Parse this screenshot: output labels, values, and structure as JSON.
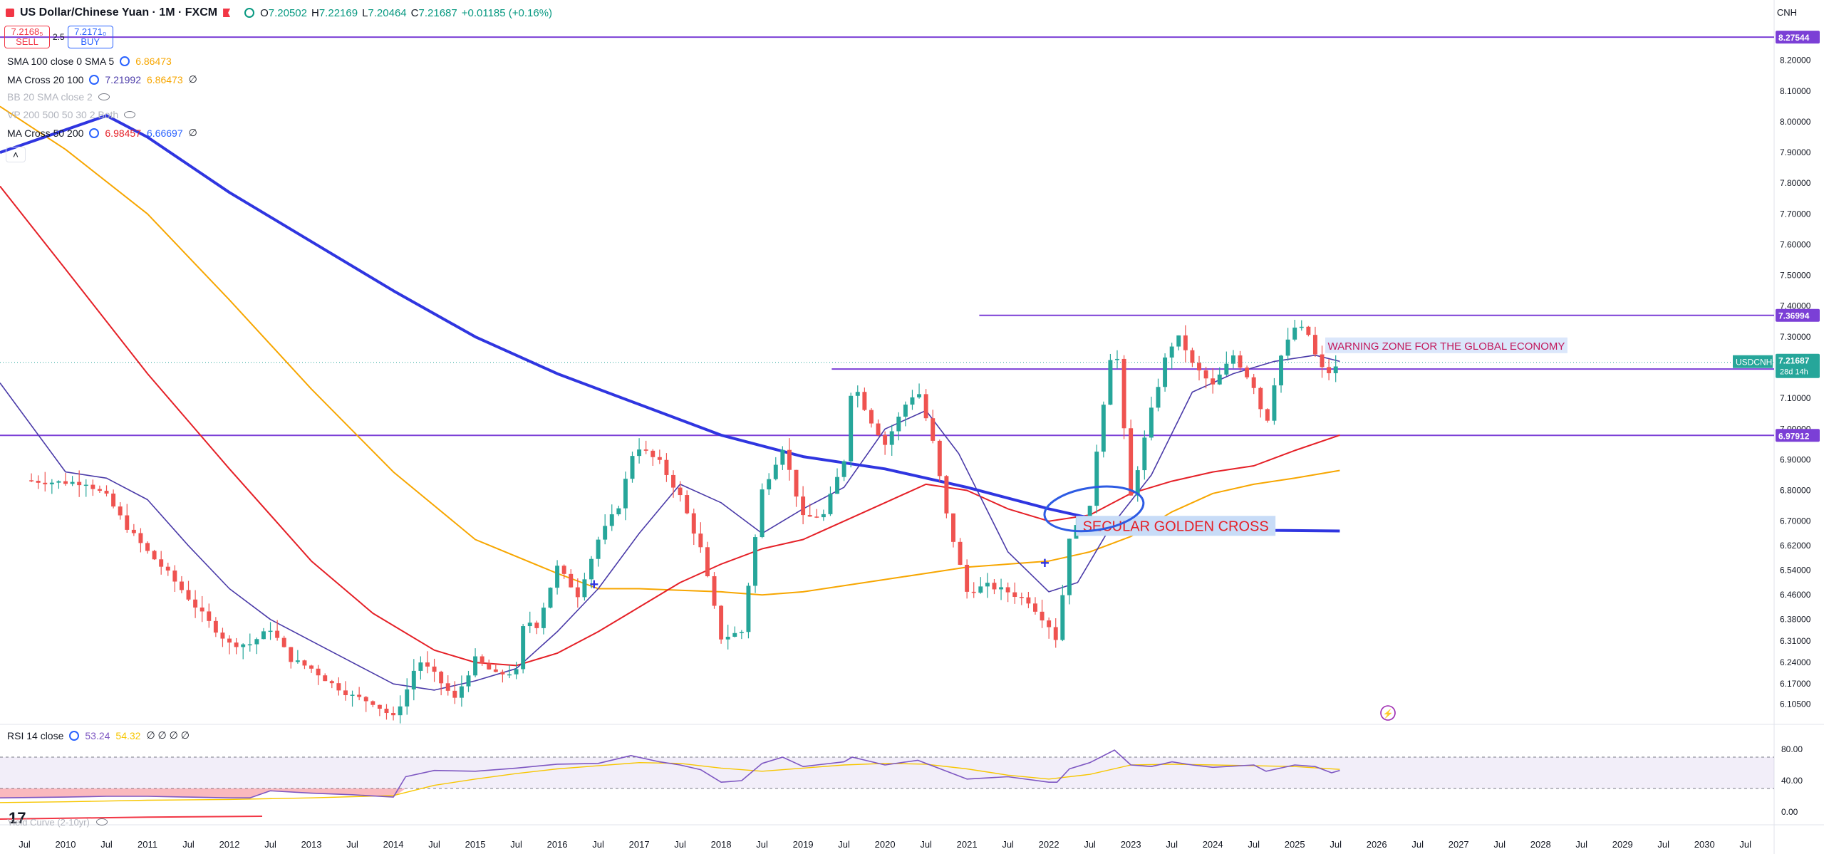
{
  "header": {
    "symbol": "US Dollar/Chinese Yuan · 1M · FXCM",
    "open_label": "O",
    "open": "7.20502",
    "high_label": "H",
    "high": "7.22169",
    "low_label": "L",
    "low": "7.20464",
    "close_label": "C",
    "close": "7.21687",
    "change": "+0.01185 (+0.16%)",
    "currency": "CNH"
  },
  "trade": {
    "sell_price": "7.2168₅",
    "sell_label": "SELL",
    "spread": "2.5",
    "buy_price": "7.2171₀",
    "buy_label": "BUY"
  },
  "indicators": [
    {
      "name": "SMA 100 close 0 SMA 5",
      "v1": "6.86473",
      "v1_color": "#f7a600",
      "v2": "",
      "extra": ""
    },
    {
      "name": "MA Cross 20 100",
      "v1": "7.21992",
      "v1_color": "#4a3aa8",
      "v2": "6.86473",
      "v2_color": "#f7a600",
      "extra": "∅"
    },
    {
      "name": "BB 20 SMA close 2",
      "v1": "",
      "v2": "",
      "extra": "",
      "hidden": true
    },
    {
      "name": "VP 200 500 50 30 2 Both",
      "v1": "",
      "v2": "",
      "extra": "",
      "hidden": true
    },
    {
      "name": "MA Cross 50 200",
      "v1": "6.98457",
      "v1_color": "#e52027",
      "v2": "6.66697",
      "v2_color": "#2962ff",
      "extra": "∅"
    }
  ],
  "rsi_panel": {
    "label": "RSI 14 close",
    "v1": "53.24",
    "v2": "54.32",
    "extra": "∅ ∅ ∅ ∅"
  },
  "yield_label": "Yield Curve (2-10yr)",
  "tv_logo": "17",
  "colors": {
    "up": "#26a69a",
    "down": "#ef5350",
    "ma20": "#4a3aa8",
    "ma50": "#e52027",
    "ma100": "#f7a600",
    "ma200": "#2f35e0",
    "hline": "#7b3fd6",
    "annotation": "#2d5be3"
  },
  "chart_data": {
    "type": "candlestick",
    "title": "US Dollar/Chinese Yuan",
    "timeframe": "1M",
    "y_range": [
      6.05,
      8.35
    ],
    "x_range": [
      "2009-03",
      "2030-12"
    ],
    "y_ticks": [
      "8.20000",
      "8.10000",
      "8.00000",
      "7.90000",
      "7.80000",
      "7.70000",
      "7.60000",
      "7.50000",
      "7.40000",
      "7.30000",
      "7.10000",
      "7.00000",
      "6.90000",
      "6.80000",
      "6.70000",
      "6.62000",
      "6.54000",
      "6.46000",
      "6.38000",
      "6.31000",
      "6.24000",
      "6.17000",
      "6.10500"
    ],
    "x_ticks": [
      {
        "label": "Jul",
        "t": 2009.5
      },
      {
        "label": "2010",
        "t": 2010.0
      },
      {
        "label": "Jul",
        "t": 2010.5
      },
      {
        "label": "2011",
        "t": 2011.0
      },
      {
        "label": "Jul",
        "t": 2011.5
      },
      {
        "label": "2012",
        "t": 2012.0
      },
      {
        "label": "Jul",
        "t": 2012.5
      },
      {
        "label": "2013",
        "t": 2013.0
      },
      {
        "label": "Jul",
        "t": 2013.5
      },
      {
        "label": "2014",
        "t": 2014.0
      },
      {
        "label": "Jul",
        "t": 2014.5
      },
      {
        "label": "2015",
        "t": 2015.0
      },
      {
        "label": "Jul",
        "t": 2015.5
      },
      {
        "label": "2016",
        "t": 2016.0
      },
      {
        "label": "Jul",
        "t": 2016.5
      },
      {
        "label": "2017",
        "t": 2017.0
      },
      {
        "label": "Jul",
        "t": 2017.5
      },
      {
        "label": "2018",
        "t": 2018.0
      },
      {
        "label": "Jul",
        "t": 2018.5
      },
      {
        "label": "2019",
        "t": 2019.0
      },
      {
        "label": "Jul",
        "t": 2019.5
      },
      {
        "label": "2020",
        "t": 2020.0
      },
      {
        "label": "Jul",
        "t": 2020.5
      },
      {
        "label": "2021",
        "t": 2021.0
      },
      {
        "label": "Jul",
        "t": 2021.5
      },
      {
        "label": "2022",
        "t": 2022.0
      },
      {
        "label": "Jul",
        "t": 2022.5
      },
      {
        "label": "2023",
        "t": 2023.0
      },
      {
        "label": "Jul",
        "t": 2023.5
      },
      {
        "label": "2024",
        "t": 2024.0
      },
      {
        "label": "Jul",
        "t": 2024.5
      },
      {
        "label": "2025",
        "t": 2025.0
      },
      {
        "label": "Jul",
        "t": 2025.5
      },
      {
        "label": "2026",
        "t": 2026.0
      },
      {
        "label": "Jul",
        "t": 2026.5
      },
      {
        "label": "2027",
        "t": 2027.0
      },
      {
        "label": "Jul",
        "t": 2027.5
      },
      {
        "label": "2028",
        "t": 2028.0
      },
      {
        "label": "Jul",
        "t": 2028.5
      },
      {
        "label": "2029",
        "t": 2029.0
      },
      {
        "label": "Jul",
        "t": 2029.5
      },
      {
        "label": "2030",
        "t": 2030.0
      },
      {
        "label": "Jul",
        "t": 2030.5
      }
    ],
    "closes": [
      {
        "t": 2009.5,
        "c": 6.833
      },
      {
        "t": 2009.83,
        "c": 6.827
      },
      {
        "t": 2010.25,
        "c": 6.826
      },
      {
        "t": 2010.5,
        "c": 6.78
      },
      {
        "t": 2010.75,
        "c": 6.68
      },
      {
        "t": 2011.0,
        "c": 6.6
      },
      {
        "t": 2011.25,
        "c": 6.53
      },
      {
        "t": 2011.5,
        "c": 6.45
      },
      {
        "t": 2011.75,
        "c": 6.37
      },
      {
        "t": 2012.0,
        "c": 6.3
      },
      {
        "t": 2012.25,
        "c": 6.3
      },
      {
        "t": 2012.5,
        "c": 6.35
      },
      {
        "t": 2012.75,
        "c": 6.25
      },
      {
        "t": 2013.0,
        "c": 6.22
      },
      {
        "t": 2013.25,
        "c": 6.17
      },
      {
        "t": 2013.5,
        "c": 6.13
      },
      {
        "t": 2013.75,
        "c": 6.11
      },
      {
        "t": 2014.0,
        "c": 6.06
      },
      {
        "t": 2014.15,
        "c": 6.14
      },
      {
        "t": 2014.3,
        "c": 6.25
      },
      {
        "t": 2014.5,
        "c": 6.2
      },
      {
        "t": 2014.75,
        "c": 6.12
      },
      {
        "t": 2015.0,
        "c": 6.25
      },
      {
        "t": 2015.25,
        "c": 6.2
      },
      {
        "t": 2015.5,
        "c": 6.21
      },
      {
        "t": 2015.6,
        "c": 6.38
      },
      {
        "t": 2015.75,
        "c": 6.36
      },
      {
        "t": 2016.0,
        "c": 6.55
      },
      {
        "t": 2016.25,
        "c": 6.46
      },
      {
        "t": 2016.5,
        "c": 6.64
      },
      {
        "t": 2016.75,
        "c": 6.75
      },
      {
        "t": 2016.95,
        "c": 6.95
      },
      {
        "t": 2017.25,
        "c": 6.89
      },
      {
        "t": 2017.5,
        "c": 6.78
      },
      {
        "t": 2017.75,
        "c": 6.61
      },
      {
        "t": 2018.0,
        "c": 6.32
      },
      {
        "t": 2018.25,
        "c": 6.34
      },
      {
        "t": 2018.5,
        "c": 6.8
      },
      {
        "t": 2018.75,
        "c": 6.94
      },
      {
        "t": 2019.0,
        "c": 6.71
      },
      {
        "t": 2019.25,
        "c": 6.72
      },
      {
        "t": 2019.5,
        "c": 6.9
      },
      {
        "t": 2019.6,
        "c": 7.16
      },
      {
        "t": 2019.8,
        "c": 7.04
      },
      {
        "t": 2020.0,
        "c": 6.95
      },
      {
        "t": 2020.25,
        "c": 7.08
      },
      {
        "t": 2020.4,
        "c": 7.13
      },
      {
        "t": 2020.6,
        "c": 6.94
      },
      {
        "t": 2020.75,
        "c": 6.72
      },
      {
        "t": 2021.0,
        "c": 6.47
      },
      {
        "t": 2021.25,
        "c": 6.49
      },
      {
        "t": 2021.5,
        "c": 6.47
      },
      {
        "t": 2021.75,
        "c": 6.44
      },
      {
        "t": 2022.0,
        "c": 6.36
      },
      {
        "t": 2022.1,
        "c": 6.31
      },
      {
        "t": 2022.25,
        "c": 6.65
      },
      {
        "t": 2022.5,
        "c": 6.74
      },
      {
        "t": 2022.6,
        "c": 6.97
      },
      {
        "t": 2022.8,
        "c": 7.32
      },
      {
        "t": 2022.95,
        "c": 6.9
      },
      {
        "t": 2023.0,
        "c": 6.78
      },
      {
        "t": 2023.25,
        "c": 7.06
      },
      {
        "t": 2023.45,
        "c": 7.26
      },
      {
        "t": 2023.6,
        "c": 7.3
      },
      {
        "t": 2023.75,
        "c": 7.21
      },
      {
        "t": 2024.0,
        "c": 7.14
      },
      {
        "t": 2024.25,
        "c": 7.24
      },
      {
        "t": 2024.5,
        "c": 7.14
      },
      {
        "t": 2024.65,
        "c": 7.01
      },
      {
        "t": 2024.8,
        "c": 7.22
      },
      {
        "t": 2025.0,
        "c": 7.33
      },
      {
        "t": 2025.15,
        "c": 7.32
      },
      {
        "t": 2025.3,
        "c": 7.2
      },
      {
        "t": 2025.45,
        "c": 7.18
      },
      {
        "t": 2025.55,
        "c": 7.2169
      }
    ],
    "levels": [
      {
        "label": "8.27544",
        "price": 8.27544,
        "color": "#7b3fd6",
        "from": 2009.2
      },
      {
        "label": "7.36994",
        "price": 7.36994,
        "color": "#7b3fd6",
        "from": 2021.15
      },
      {
        "label": "7.19520",
        "price": 7.1952,
        "color": "#7b3fd6",
        "from": 2019.35
      },
      {
        "label": "6.97912",
        "price": 6.97912,
        "color": "#7b3fd6",
        "from": 2009.2
      }
    ],
    "current_price": {
      "symbol": "USDCNH",
      "price": "7.21687",
      "countdown": "28d 14h",
      "value": 7.21687
    },
    "annotations": [
      {
        "text": "WARNING ZONE FOR THE GLOBAL ECONOMY",
        "t": 2026.85,
        "p": 7.27
      },
      {
        "text": "SECULAR GOLDEN CROSS",
        "t": 2023.2,
        "p": 6.68
      }
    ],
    "ma20": [
      [
        2009.2,
        7.15
      ],
      [
        2010.0,
        6.86
      ],
      [
        2010.5,
        6.84
      ],
      [
        2011.0,
        6.77
      ],
      [
        2011.5,
        6.62
      ],
      [
        2012.0,
        6.48
      ],
      [
        2012.5,
        6.38
      ],
      [
        2013.0,
        6.31
      ],
      [
        2013.5,
        6.24
      ],
      [
        2014.0,
        6.17
      ],
      [
        2014.5,
        6.15
      ],
      [
        2015.0,
        6.18
      ],
      [
        2015.5,
        6.22
      ],
      [
        2016.0,
        6.34
      ],
      [
        2016.5,
        6.48
      ],
      [
        2017.0,
        6.66
      ],
      [
        2017.5,
        6.82
      ],
      [
        2018.0,
        6.76
      ],
      [
        2018.5,
        6.66
      ],
      [
        2019.0,
        6.74
      ],
      [
        2019.5,
        6.81
      ],
      [
        2020.0,
        7.0
      ],
      [
        2020.5,
        7.06
      ],
      [
        2020.9,
        6.92
      ],
      [
        2021.5,
        6.6
      ],
      [
        2022.0,
        6.47
      ],
      [
        2022.35,
        6.5
      ],
      [
        2022.75,
        6.68
      ],
      [
        2023.25,
        6.85
      ],
      [
        2023.75,
        7.12
      ],
      [
        2024.25,
        7.18
      ],
      [
        2024.75,
        7.22
      ],
      [
        2025.25,
        7.24
      ],
      [
        2025.55,
        7.22
      ]
    ],
    "ma50": [
      [
        2009.2,
        7.79
      ],
      [
        2010.0,
        7.52
      ],
      [
        2011.0,
        7.18
      ],
      [
        2012.0,
        6.87
      ],
      [
        2013.0,
        6.57
      ],
      [
        2013.75,
        6.4
      ],
      [
        2014.5,
        6.28
      ],
      [
        2015.0,
        6.24
      ],
      [
        2015.5,
        6.23
      ],
      [
        2016.0,
        6.27
      ],
      [
        2016.5,
        6.34
      ],
      [
        2017.0,
        6.42
      ],
      [
        2017.5,
        6.5
      ],
      [
        2018.0,
        6.56
      ],
      [
        2018.5,
        6.61
      ],
      [
        2019.0,
        6.64
      ],
      [
        2019.5,
        6.7
      ],
      [
        2020.0,
        6.76
      ],
      [
        2020.5,
        6.82
      ],
      [
        2021.0,
        6.8
      ],
      [
        2021.5,
        6.74
      ],
      [
        2022.0,
        6.7
      ],
      [
        2022.5,
        6.72
      ],
      [
        2023.0,
        6.79
      ],
      [
        2023.5,
        6.83
      ],
      [
        2024.0,
        6.86
      ],
      [
        2024.5,
        6.88
      ],
      [
        2025.0,
        6.93
      ],
      [
        2025.55,
        6.98
      ]
    ],
    "ma100": [
      [
        2009.2,
        8.05
      ],
      [
        2010.0,
        7.91
      ],
      [
        2011.0,
        7.7
      ],
      [
        2012.0,
        7.42
      ],
      [
        2013.0,
        7.13
      ],
      [
        2014.0,
        6.86
      ],
      [
        2015.0,
        6.64
      ],
      [
        2016.0,
        6.53
      ],
      [
        2016.5,
        6.48
      ],
      [
        2017.0,
        6.48
      ],
      [
        2017.5,
        6.475
      ],
      [
        2018.0,
        6.47
      ],
      [
        2018.5,
        6.46
      ],
      [
        2019.0,
        6.47
      ],
      [
        2019.5,
        6.49
      ],
      [
        2020.0,
        6.51
      ],
      [
        2020.5,
        6.53
      ],
      [
        2021.0,
        6.55
      ],
      [
        2021.5,
        6.56
      ],
      [
        2022.0,
        6.57
      ],
      [
        2022.5,
        6.6
      ],
      [
        2023.0,
        6.65
      ],
      [
        2023.5,
        6.73
      ],
      [
        2024.0,
        6.79
      ],
      [
        2024.5,
        6.82
      ],
      [
        2025.0,
        6.84
      ],
      [
        2025.55,
        6.865
      ]
    ],
    "ma200": [
      [
        2009.2,
        7.9
      ],
      [
        2010.5,
        8.02
      ],
      [
        2011.0,
        7.95
      ],
      [
        2012.0,
        7.77
      ],
      [
        2013.0,
        7.61
      ],
      [
        2014.0,
        7.45
      ],
      [
        2015.0,
        7.3
      ],
      [
        2016.0,
        7.18
      ],
      [
        2017.0,
        7.08
      ],
      [
        2018.0,
        6.98
      ],
      [
        2019.0,
        6.91
      ],
      [
        2020.0,
        6.87
      ],
      [
        2021.0,
        6.81
      ],
      [
        2022.0,
        6.74
      ],
      [
        2022.5,
        6.71
      ],
      [
        2023.0,
        6.7
      ],
      [
        2024.0,
        6.69
      ],
      [
        2024.75,
        6.67
      ],
      [
        2025.55,
        6.668
      ]
    ],
    "rsi": {
      "y_ticks": [
        "80.00",
        "40.00",
        "0.00"
      ],
      "band": [
        30,
        70
      ],
      "current": 53.24,
      "signal": 54.32,
      "rsi_line": [
        [
          2009.2,
          18
        ],
        [
          2010.0,
          19
        ],
        [
          2010.5,
          20
        ],
        [
          2011.0,
          20
        ],
        [
          2011.5,
          19
        ],
        [
          2012.0,
          18
        ],
        [
          2012.25,
          18
        ],
        [
          2012.5,
          27
        ],
        [
          2013.0,
          24
        ],
        [
          2013.5,
          22
        ],
        [
          2014.0,
          19
        ],
        [
          2014.15,
          45
        ],
        [
          2014.5,
          53
        ],
        [
          2015.0,
          52
        ],
        [
          2015.5,
          56
        ],
        [
          2016.0,
          61
        ],
        [
          2016.5,
          62
        ],
        [
          2016.9,
          72
        ],
        [
          2017.25,
          64
        ],
        [
          2017.5,
          60
        ],
        [
          2017.75,
          54
        ],
        [
          2018.0,
          38
        ],
        [
          2018.25,
          40
        ],
        [
          2018.5,
          62
        ],
        [
          2018.75,
          70
        ],
        [
          2019.0,
          58
        ],
        [
          2019.5,
          64
        ],
        [
          2019.6,
          70
        ],
        [
          2020.0,
          60
        ],
        [
          2020.4,
          66
        ],
        [
          2020.75,
          52
        ],
        [
          2021.0,
          42
        ],
        [
          2021.5,
          45
        ],
        [
          2022.0,
          38
        ],
        [
          2022.1,
          38
        ],
        [
          2022.25,
          55
        ],
        [
          2022.5,
          63
        ],
        [
          2022.8,
          79
        ],
        [
          2023.0,
          60
        ],
        [
          2023.25,
          58
        ],
        [
          2023.5,
          64
        ],
        [
          2023.75,
          60
        ],
        [
          2024.0,
          57
        ],
        [
          2024.5,
          60
        ],
        [
          2024.65,
          52
        ],
        [
          2025.0,
          60
        ],
        [
          2025.25,
          58
        ],
        [
          2025.45,
          50
        ],
        [
          2025.55,
          53
        ]
      ],
      "signal_line": [
        [
          2009.2,
          12
        ],
        [
          2010.0,
          13
        ],
        [
          2011.0,
          15
        ],
        [
          2012.0,
          16
        ],
        [
          2013.0,
          18
        ],
        [
          2014.0,
          21
        ],
        [
          2014.5,
          34
        ],
        [
          2015.0,
          42
        ],
        [
          2015.5,
          49
        ],
        [
          2016.0,
          55
        ],
        [
          2016.5,
          59
        ],
        [
          2017.0,
          63
        ],
        [
          2017.5,
          62
        ],
        [
          2018.0,
          56
        ],
        [
          2018.5,
          52
        ],
        [
          2019.0,
          56
        ],
        [
          2019.5,
          60
        ],
        [
          2020.0,
          62
        ],
        [
          2020.5,
          61
        ],
        [
          2021.0,
          55
        ],
        [
          2021.5,
          47
        ],
        [
          2022.0,
          42
        ],
        [
          2022.5,
          48
        ],
        [
          2023.0,
          60
        ],
        [
          2023.5,
          61
        ],
        [
          2024.0,
          60
        ],
        [
          2024.5,
          59
        ],
        [
          2025.0,
          58
        ],
        [
          2025.55,
          54.32
        ]
      ]
    },
    "yield_curve": [
      [
        2009.2,
        5
      ],
      [
        2010.0,
        8
      ],
      [
        2011.0,
        12
      ],
      [
        2012.0,
        14
      ],
      [
        2012.4,
        15
      ]
    ]
  }
}
